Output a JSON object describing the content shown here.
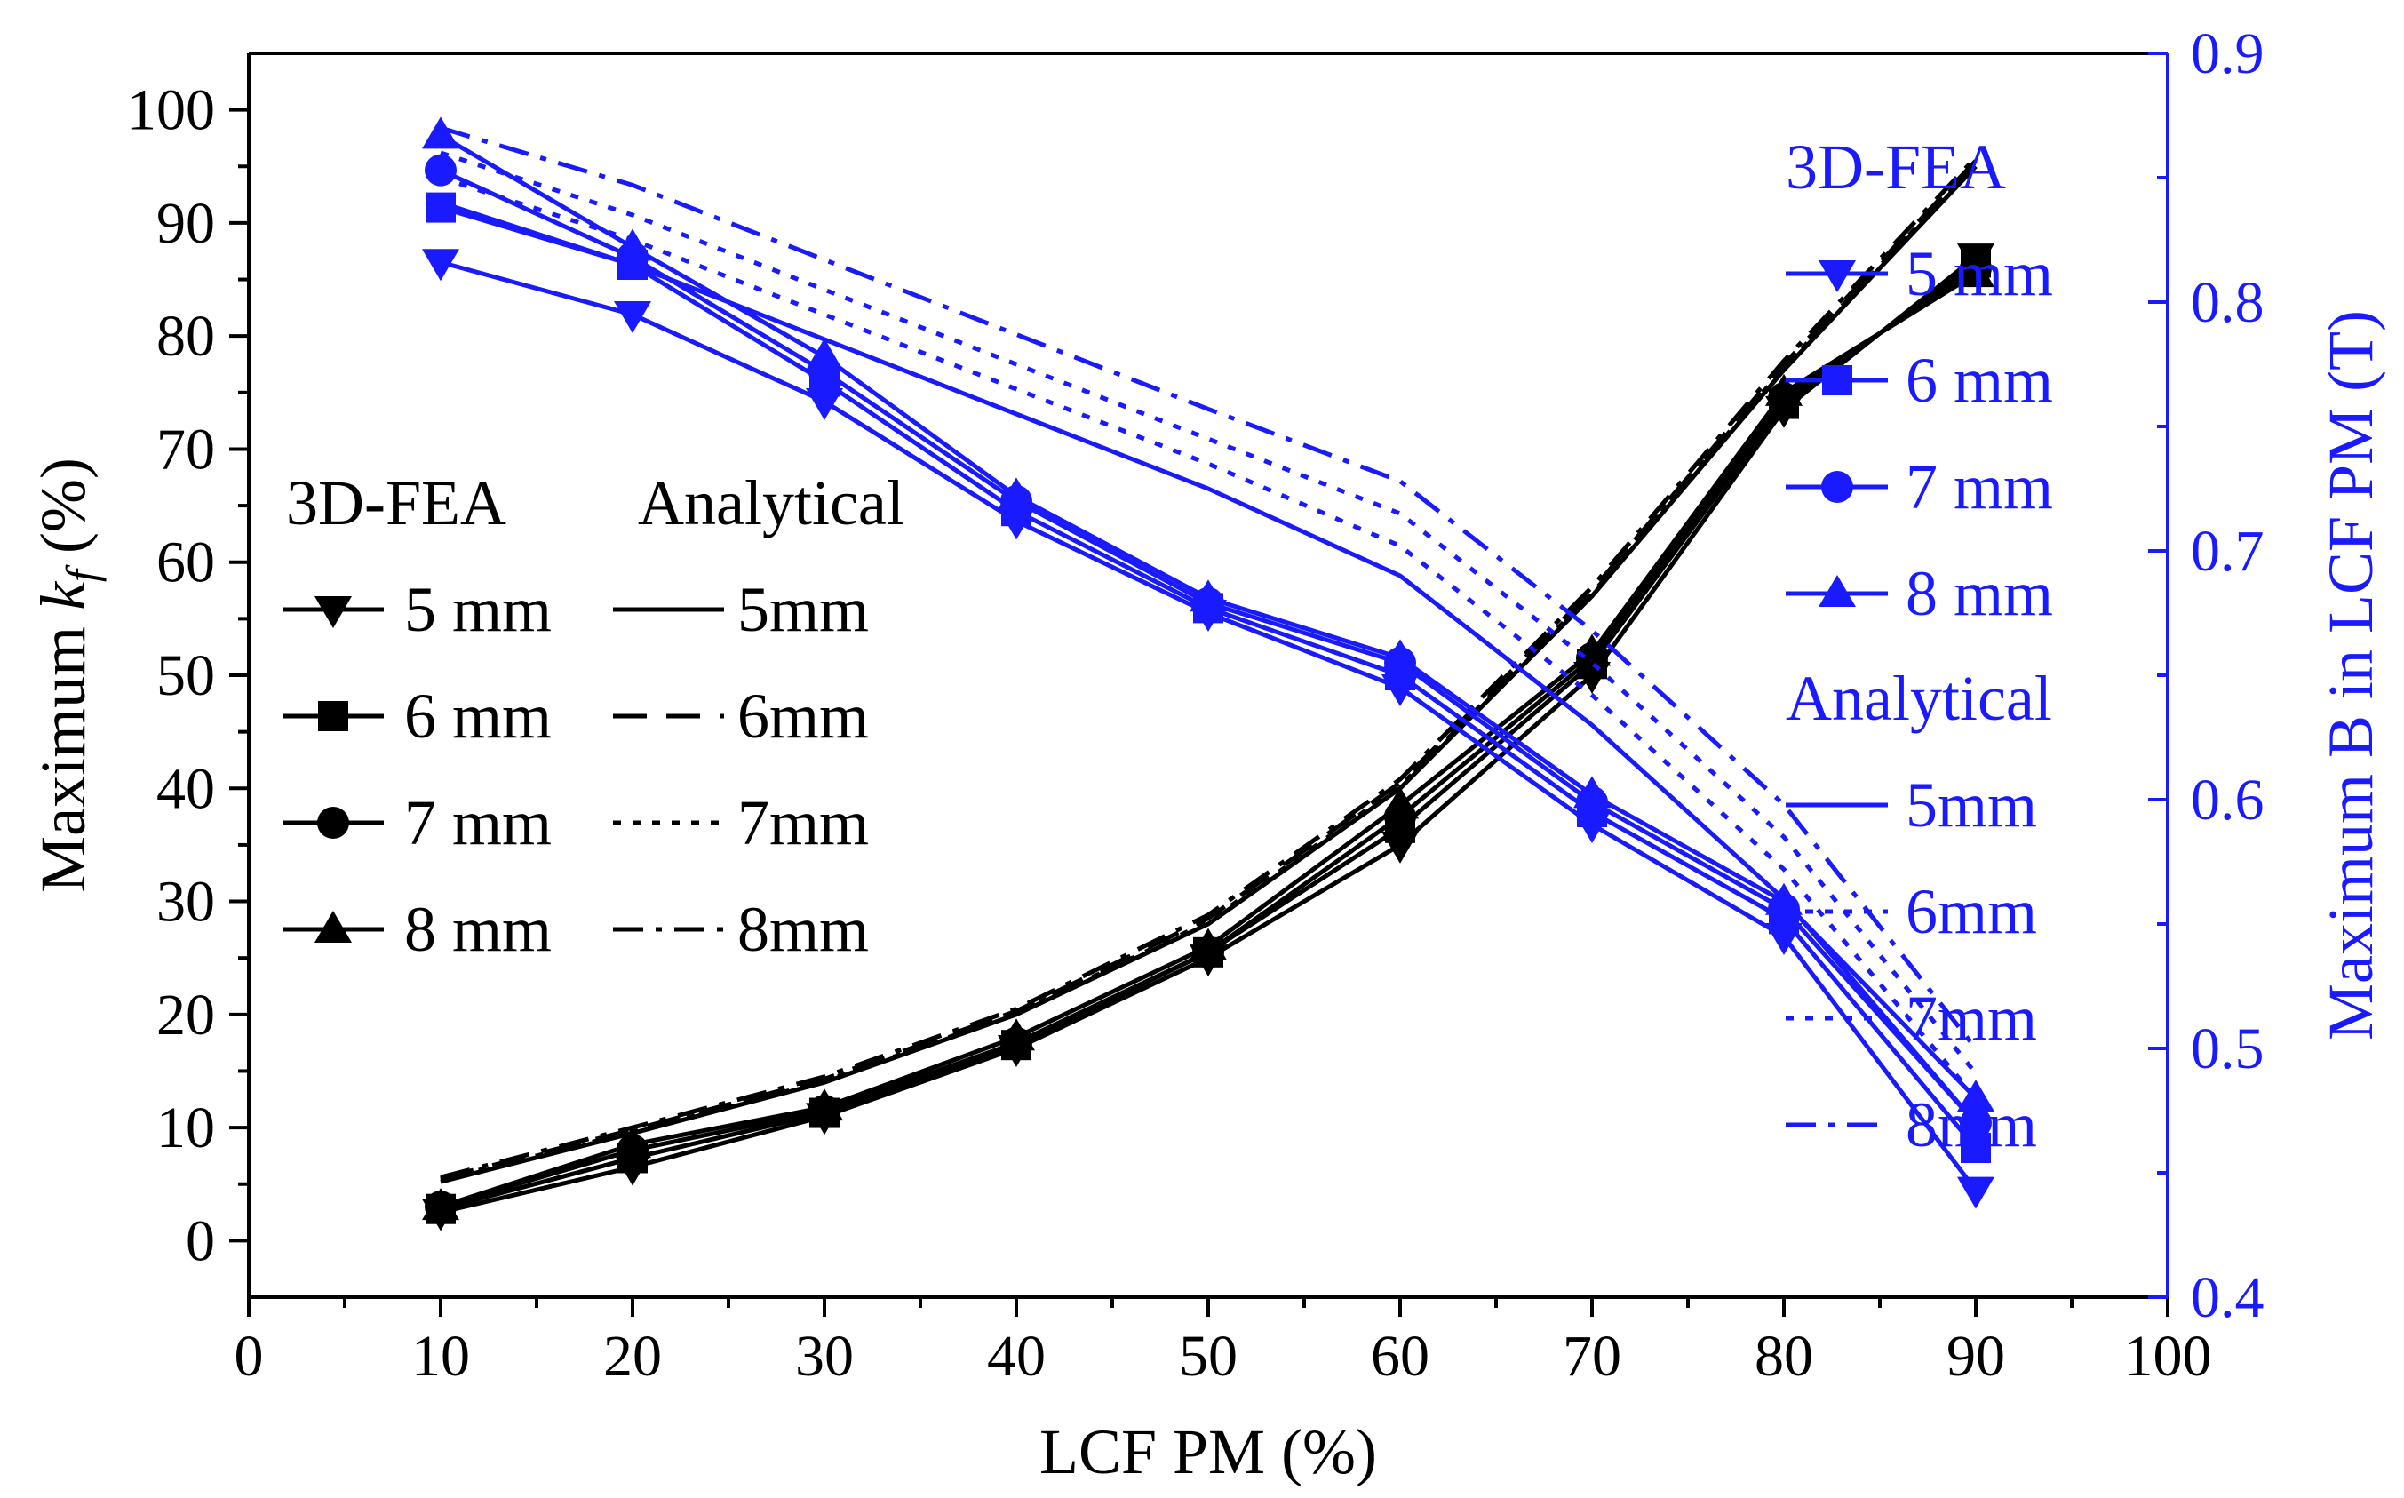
{
  "chart_data": {
    "type": "line",
    "title": "",
    "xlabel": "LCF PM (%)",
    "ylabel_left": {
      "prefix": "Maximum ",
      "symbol": "k",
      "sub": "f",
      "suffix": " (%)"
    },
    "ylabel_right": "Maximum B in LCF PM (T)",
    "xlim": [
      0,
      100
    ],
    "ylim_left": [
      -5,
      105
    ],
    "ylim_right": [
      0.4,
      0.9
    ],
    "x_ticks": [
      "0",
      "10",
      "20",
      "30",
      "40",
      "50",
      "60",
      "70",
      "80",
      "90",
      "100"
    ],
    "y_left_ticks": [
      "0",
      "10",
      "20",
      "30",
      "40",
      "50",
      "60",
      "70",
      "80",
      "90",
      "100"
    ],
    "y_right_ticks": [
      "0.4",
      "0.5",
      "0.6",
      "0.7",
      "0.8",
      "0.9"
    ],
    "grid": false,
    "colors": {
      "left": "#000000",
      "right": "#1a1aff"
    },
    "x": [
      10,
      20,
      30,
      40,
      50,
      60,
      70,
      80,
      90
    ],
    "kf_fea": [
      {
        "name": "5 mm",
        "marker": "triangle-down",
        "values": [
          2.5,
          6.5,
          11,
          17,
          25,
          35,
          50,
          73.5,
          87
        ]
      },
      {
        "name": "6 mm",
        "marker": "square",
        "values": [
          2.8,
          7.3,
          11.3,
          17.3,
          25.5,
          36.5,
          51,
          74,
          86.5
        ]
      },
      {
        "name": "7 mm",
        "marker": "circle",
        "values": [
          3,
          8,
          11.5,
          17.5,
          25.5,
          37.5,
          51.5,
          74.5,
          86
        ]
      },
      {
        "name": "8 mm",
        "marker": "triangle-up",
        "values": [
          3,
          8.5,
          11.8,
          18,
          26,
          38.5,
          52,
          75,
          85.5
        ]
      }
    ],
    "kf_analytical": [
      {
        "name": "5mm",
        "dash": "solid",
        "values": [
          5.2,
          9.5,
          14,
          20,
          28,
          40,
          57,
          77,
          95
        ]
      },
      {
        "name": "6mm",
        "dash": "dash",
        "values": [
          5.5,
          9.8,
          14.3,
          20.3,
          28.5,
          40.5,
          57.5,
          77.5,
          95.5
        ]
      },
      {
        "name": "7mm",
        "dash": "dot",
        "values": [
          5.4,
          9.6,
          14.1,
          20.1,
          28.2,
          40.2,
          57.2,
          77.2,
          95.2
        ]
      },
      {
        "name": "8mm",
        "dash": "dash-dot",
        "values": [
          5.6,
          10,
          14.5,
          20.5,
          28.8,
          40.8,
          57.8,
          77.8,
          95.8
        ]
      }
    ],
    "b_fea": [
      {
        "name": "5 mm",
        "marker": "triangle-down",
        "values": [
          0.816,
          0.795,
          0.76,
          0.712,
          0.675,
          0.645,
          0.59,
          0.545,
          0.443
        ]
      },
      {
        "name": "6 mm",
        "marker": "square",
        "values": [
          0.838,
          0.815,
          0.768,
          0.716,
          0.677,
          0.65,
          0.595,
          0.552,
          0.46
        ]
      },
      {
        "name": "7 mm",
        "marker": "circle",
        "values": [
          0.853,
          0.818,
          0.772,
          0.72,
          0.679,
          0.655,
          0.599,
          0.556,
          0.47
        ]
      },
      {
        "name": "8 mm",
        "marker": "triangle-up",
        "values": [
          0.867,
          0.822,
          0.778,
          0.722,
          0.681,
          0.657,
          0.602,
          0.559,
          0.48
        ]
      }
    ],
    "b_analytical": [
      {
        "name": "5mm",
        "dash": "solid",
        "values": [
          0.84,
          0.815,
          0.785,
          0.755,
          0.725,
          0.69,
          0.63,
          0.56,
          0.47
        ]
      },
      {
        "name": "6mm",
        "dash": "dot",
        "values": [
          0.85,
          0.825,
          0.795,
          0.765,
          0.735,
          0.702,
          0.642,
          0.572,
          0.48
        ]
      },
      {
        "name": "7mm",
        "dash": "dot",
        "values": [
          0.86,
          0.835,
          0.805,
          0.775,
          0.745,
          0.715,
          0.655,
          0.585,
          0.49
        ]
      },
      {
        "name": "8mm",
        "dash": "dash-dot",
        "values": [
          0.87,
          0.847,
          0.817,
          0.787,
          0.757,
          0.728,
          0.668,
          0.598,
          0.5
        ]
      }
    ],
    "legend_left": {
      "fea_header": "3D-FEA",
      "analytical_header": "Analytical",
      "fea_labels": [
        "5 mm",
        "6 mm",
        "7 mm",
        "8 mm"
      ],
      "analytical_labels": [
        "5mm",
        "6mm",
        "7mm",
        "8mm"
      ]
    },
    "legend_right": {
      "fea_header": "3D-FEA",
      "analytical_header": "Analytical",
      "fea_labels": [
        "5 mm",
        "6 mm",
        "7 mm",
        "8 mm"
      ],
      "analytical_labels": [
        "5mm",
        "6mm",
        "7mm",
        "8mm"
      ]
    }
  }
}
